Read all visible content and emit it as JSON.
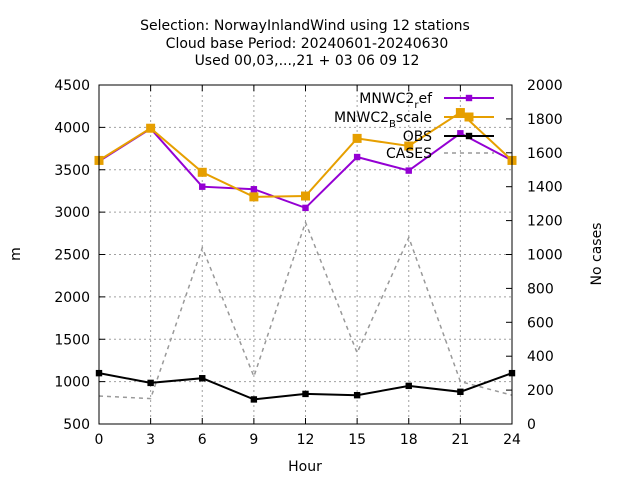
{
  "chart_data": {
    "type": "line",
    "title_lines": [
      "Selection: NorwayInlandWind using    12 stations",
      "Cloud base   Period: 20240601-20240630",
      "Used 00,03,...,21 + 03 06 09 12"
    ],
    "xlabel": "Hour",
    "ylabel": "m",
    "y2label": "No cases",
    "x": [
      0,
      3,
      6,
      9,
      12,
      15,
      18,
      21,
      24
    ],
    "xlim": [
      0,
      24
    ],
    "ylim": [
      500,
      4500
    ],
    "y2lim": [
      0,
      2000
    ],
    "xticks": [
      "0",
      "3",
      "6",
      "9",
      "12",
      "15",
      "18",
      "21",
      "24"
    ],
    "yticks": [
      "500",
      "1000",
      "1500",
      "2000",
      "2500",
      "3000",
      "3500",
      "4000",
      "4500"
    ],
    "y2ticks": [
      "0",
      "200",
      "400",
      "600",
      "800",
      "1000",
      "1200",
      "1400",
      "1600",
      "1800",
      "2000"
    ],
    "grid": true,
    "legend_position": "top-right",
    "series": [
      {
        "name": "MNWC2_ref",
        "label_main": "MNWC2",
        "label_sub": "r",
        "label_tail": "ef",
        "color": "#9400d3",
        "axis": "y",
        "dashed": false,
        "values": [
          3600,
          3985,
          3300,
          3270,
          3050,
          3650,
          3490,
          3930,
          3610
        ]
      },
      {
        "name": "MNWC2_Bscale",
        "label_main": "MNWC2",
        "label_sub": "B",
        "label_tail": "scale",
        "color": "#e69f00",
        "axis": "y",
        "dashed": false,
        "values": [
          3610,
          3990,
          3470,
          3180,
          3190,
          3870,
          3780,
          4175,
          3610
        ]
      },
      {
        "name": "OBS",
        "label_main": "OBS",
        "label_sub": "",
        "label_tail": "",
        "color": "#000000",
        "axis": "y",
        "dashed": false,
        "values": [
          1100,
          985,
          1040,
          790,
          855,
          840,
          950,
          880,
          1100
        ]
      },
      {
        "name": "CASES",
        "label_main": "CASES",
        "label_sub": "",
        "label_tail": "",
        "color": "#999999",
        "axis": "y2",
        "dashed": true,
        "values": [
          165,
          150,
          1040,
          280,
          1190,
          420,
          1100,
          250,
          170
        ]
      }
    ]
  }
}
